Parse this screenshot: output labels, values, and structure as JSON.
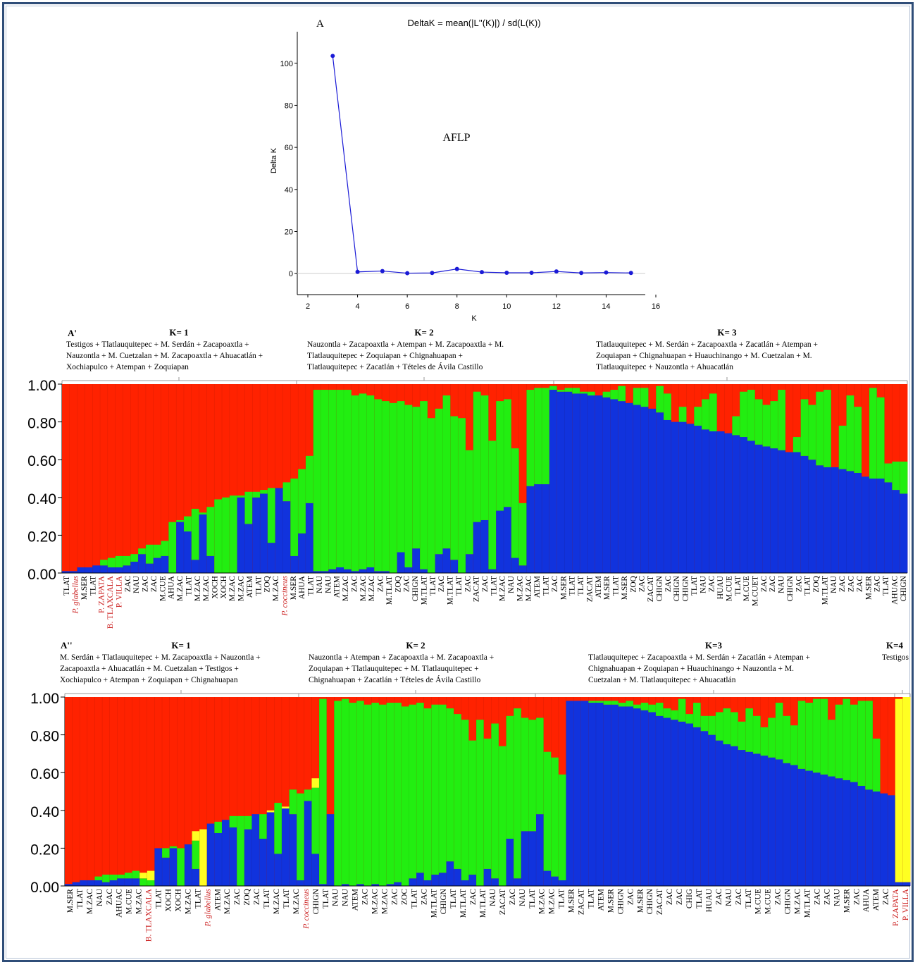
{
  "colors": {
    "red": "#ff2200",
    "green": "#22ee11",
    "blue": "#1133dd",
    "yellow": "#ffff22",
    "frame": "#2f4d78",
    "line": "#1a1ad6",
    "label_red": "#cc2222"
  },
  "chart_data": [
    {
      "type": "line",
      "panel_label": "A",
      "title": "DeltaK = mean(|L''(K)|) / sd(L(K))",
      "annotation": "AFLP",
      "xlabel": "K",
      "ylabel": "Delta K",
      "xlim": [
        2,
        16
      ],
      "ylim": [
        -10,
        115
      ],
      "xticks": [
        2,
        4,
        6,
        8,
        10,
        12,
        14,
        16
      ],
      "yticks": [
        0,
        20,
        40,
        60,
        80,
        100
      ],
      "x": [
        3,
        4,
        5,
        6,
        7,
        8,
        9,
        10,
        11,
        12,
        13,
        14,
        15
      ],
      "y": [
        103.5,
        0.8,
        1.2,
        0.2,
        0.3,
        2.2,
        0.7,
        0.4,
        0.4,
        1.0,
        0.3,
        0.5,
        0.3
      ]
    },
    {
      "type": "bar",
      "stacked": true,
      "panel_label": "A'",
      "ylim": [
        0,
        1
      ],
      "yticks": [
        "0.00",
        "0.20",
        "0.40",
        "0.60",
        "0.80",
        "1.00"
      ],
      "groups": [
        {
          "label": "K= 1",
          "text": [
            "Testigos + Tlatlauquitepec + M. Serdán + Zacapoaxtla +",
            "Nauzontla + M. Cuetzalan + M. Zacapoaxtla + Ahuacatlán +",
            "Xochiapulco + Atempan + Zoquiapan"
          ]
        },
        {
          "label": "K= 2",
          "text": [
            "Nauzontla + Zacapoaxtla + Atempan + M. Zacapoaxtla + M.",
            "Tlatlauquitepec + Zoquiapan + Chignahuapan +",
            "Tlatlauquitepec + Zacatlán + Tételes de Ávila Castillo"
          ]
        },
        {
          "label": "K= 3",
          "text": [
            "Tlatlauquitepec + M. Serdán + Zacapoaxtla + Zacatlán + Atempan +",
            "Zoquiapan + Chignahuapan + Huauchinango + M. Cuetzalan + M.",
            "Tlatlauquitepec + Nauzontla + Ahuacatlán"
          ]
        }
      ],
      "series": [
        {
          "name": "blue",
          "values": [
            0.01,
            0.01,
            0.03,
            0.03,
            0.04,
            0.04,
            0.03,
            0.03,
            0.04,
            0.06,
            0.1,
            0.05,
            0.08,
            0.09,
            0.0,
            0.27,
            0.22,
            0.07,
            0.31,
            0.09,
            0.0,
            0.0,
            0.0,
            0.4,
            0.26,
            0.4,
            0.42,
            0.16,
            0.45,
            0.38,
            0.09,
            0.21,
            0.37,
            0.01,
            0.01,
            0.02,
            0.03,
            0.02,
            0.01,
            0.02,
            0.03,
            0.01,
            0.01,
            0.0,
            0.11,
            0.03,
            0.13,
            0.02,
            0.0,
            0.1,
            0.13,
            0.07,
            0.0,
            0.1,
            0.27,
            0.28,
            0.02,
            0.33,
            0.35,
            0.08,
            0.04,
            0.46,
            0.47,
            0.47,
            0.97,
            0.96,
            0.96,
            0.95,
            0.95,
            0.94,
            0.94,
            0.93,
            0.92,
            0.91,
            0.9,
            0.89,
            0.88,
            0.87,
            0.85,
            0.81,
            0.8,
            0.8,
            0.79,
            0.78,
            0.76,
            0.75,
            0.75,
            0.74,
            0.73,
            0.72,
            0.7,
            0.68,
            0.67,
            0.66,
            0.65,
            0.64,
            0.64,
            0.62,
            0.6,
            0.57,
            0.56,
            0.56,
            0.55,
            0.54,
            0.53,
            0.51,
            0.5,
            0.5,
            0.48,
            0.44,
            0.42
          ]
        },
        {
          "name": "green",
          "values": [
            0.0,
            0.0,
            0.0,
            0.0,
            0.0,
            0.03,
            0.05,
            0.06,
            0.05,
            0.04,
            0.03,
            0.1,
            0.07,
            0.08,
            0.27,
            0.01,
            0.08,
            0.27,
            0.01,
            0.26,
            0.39,
            0.4,
            0.41,
            0.01,
            0.17,
            0.03,
            0.02,
            0.29,
            0.0,
            0.1,
            0.41,
            0.34,
            0.25,
            0.96,
            0.96,
            0.95,
            0.94,
            0.95,
            0.93,
            0.93,
            0.91,
            0.91,
            0.9,
            0.9,
            0.8,
            0.86,
            0.75,
            0.89,
            0.82,
            0.77,
            0.81,
            0.76,
            0.82,
            0.55,
            0.69,
            0.66,
            0.68,
            0.58,
            0.57,
            0.58,
            0.33,
            0.51,
            0.51,
            0.51,
            0.02,
            0.01,
            0.02,
            0.03,
            0.01,
            0.02,
            0.0,
            0.03,
            0.05,
            0.08,
            0.0,
            0.09,
            0.1,
            0.0,
            0.14,
            0.14,
            0.0,
            0.08,
            0.0,
            0.1,
            0.16,
            0.2,
            0.0,
            0.0,
            0.1,
            0.24,
            0.27,
            0.24,
            0.22,
            0.25,
            0.32,
            0.0,
            0.08,
            0.3,
            0.29,
            0.39,
            0.41,
            0.0,
            0.23,
            0.4,
            0.35,
            0.0,
            0.48,
            0.43,
            0.1,
            0.15,
            0.17
          ]
        }
      ]
    },
    {
      "type": "bar",
      "stacked": true,
      "panel_label": "A''",
      "ylim": [
        0,
        1
      ],
      "yticks": [
        "0.00",
        "0.20",
        "0.40",
        "0.60",
        "0.80",
        "1.00"
      ],
      "groups": [
        {
          "label": "K= 1",
          "text": [
            "M. Serdán + Tlatlauquitepec + M. Zacapoaxtla + Nauzontla +",
            "Zacapoaxtla + Ahuacatlán + M. Cuetzalan + Testigos +",
            "Xochiapulco + Atempan + Zoquiapan + Chignahuapan"
          ]
        },
        {
          "label": "K= 2",
          "text": [
            "Nauzontla + Atempan + Zacapoaxtla + M. Zacapoaxtla +",
            "Zoquiapan + Tlatlauquitepec + M. Tlatlauquitepec +",
            "Chignahuapan + Zacatlán + Tételes de Ávila Castillo"
          ]
        },
        {
          "label": "K=3",
          "text": [
            "Tlatlauquitepec + Zacapoaxtla + M. Serdán + Zacatlán + Atempan +",
            "Chignahuapan + Zoquiapan + Huauchinango + Nauzontla + M.",
            "Cuetzalan + M. Tlatlauquitepec + Ahuacatlán"
          ]
        },
        {
          "label": "K=4",
          "text": [
            "Testigos"
          ]
        }
      ],
      "series": [
        {
          "name": "blue",
          "values": [
            0.01,
            0.02,
            0.03,
            0.03,
            0.03,
            0.02,
            0.03,
            0.04,
            0.04,
            0.04,
            0.0,
            0.0,
            0.2,
            0.15,
            0.2,
            0.0,
            0.22,
            0.09,
            0.0,
            0.33,
            0.28,
            0.35,
            0.31,
            0.0,
            0.3,
            0.38,
            0.25,
            0.39,
            0.17,
            0.41,
            0.38,
            0.03,
            0.45,
            0.17,
            0.01,
            0.38,
            0.0,
            0.01,
            0.0,
            0.01,
            0.0,
            0.01,
            0.0,
            0.01,
            0.02,
            0.0,
            0.04,
            0.07,
            0.03,
            0.06,
            0.07,
            0.13,
            0.09,
            0.03,
            0.06,
            0.0,
            0.09,
            0.04,
            0.0,
            0.25,
            0.04,
            0.29,
            0.29,
            0.38,
            0.08,
            0.05,
            0.03,
            0.98,
            0.98,
            0.98,
            0.97,
            0.97,
            0.96,
            0.96,
            0.95,
            0.95,
            0.94,
            0.93,
            0.92,
            0.9,
            0.89,
            0.88,
            0.87,
            0.86,
            0.84,
            0.82,
            0.8,
            0.77,
            0.75,
            0.74,
            0.72,
            0.71,
            0.7,
            0.69,
            0.68,
            0.67,
            0.65,
            0.64,
            0.62,
            0.61,
            0.6,
            0.59,
            0.58,
            0.57,
            0.56,
            0.55,
            0.53,
            0.51,
            0.5,
            0.49,
            0.48,
            0.02,
            0.02
          ]
        },
        {
          "name": "green",
          "values": [
            0.0,
            0.0,
            0.0,
            0.0,
            0.02,
            0.04,
            0.03,
            0.02,
            0.03,
            0.04,
            0.04,
            0.03,
            0.0,
            0.05,
            0.01,
            0.2,
            0.0,
            0.15,
            0.0,
            0.0,
            0.06,
            0.0,
            0.06,
            0.37,
            0.07,
            0.0,
            0.13,
            0.0,
            0.27,
            0.0,
            0.13,
            0.46,
            0.06,
            0.35,
            0.98,
            0.0,
            0.98,
            0.98,
            0.97,
            0.97,
            0.96,
            0.96,
            0.96,
            0.96,
            0.95,
            0.95,
            0.92,
            0.9,
            0.91,
            0.9,
            0.89,
            0.81,
            0.82,
            0.85,
            0.71,
            0.88,
            0.69,
            0.82,
            0.74,
            0.65,
            0.9,
            0.6,
            0.59,
            0.51,
            0.63,
            0.63,
            0.56,
            0.0,
            0.0,
            0.0,
            0.01,
            0.01,
            0.02,
            0.02,
            0.02,
            0.03,
            0.02,
            0.04,
            0.04,
            0.07,
            0.05,
            0.05,
            0.12,
            0.05,
            0.13,
            0.08,
            0.1,
            0.15,
            0.19,
            0.18,
            0.15,
            0.23,
            0.2,
            0.15,
            0.21,
            0.3,
            0.25,
            0.21,
            0.36,
            0.36,
            0.39,
            0.4,
            0.3,
            0.39,
            0.43,
            0.41,
            0.45,
            0.47,
            0.28,
            0.0,
            0.0,
            0.0
          ]
        },
        {
          "name": "yellow",
          "values": [
            0,
            0,
            0,
            0,
            0,
            0,
            0,
            0,
            0,
            0,
            0.03,
            0.05,
            0,
            0,
            0,
            0,
            0,
            0.05,
            0.3,
            0,
            0,
            0,
            0,
            0,
            0,
            0,
            0,
            0.01,
            0,
            0.01,
            0,
            0,
            0,
            0.05,
            0,
            0,
            0,
            0,
            0,
            0,
            0,
            0,
            0,
            0,
            0,
            0,
            0,
            0,
            0,
            0,
            0,
            0,
            0,
            0,
            0,
            0,
            0,
            0,
            0,
            0,
            0,
            0,
            0,
            0,
            0,
            0,
            0,
            0,
            0,
            0,
            0,
            0,
            0,
            0,
            0,
            0,
            0,
            0,
            0,
            0,
            0,
            0,
            0,
            0,
            0,
            0,
            0,
            0,
            0,
            0,
            0,
            0,
            0,
            0,
            0,
            0,
            0,
            0,
            0,
            0,
            0,
            0,
            0,
            0,
            0,
            0,
            0,
            0,
            0,
            0,
            0,
            0.97,
            0.98
          ]
        }
      ]
    }
  ],
  "xlabels_A1": [
    {
      "t": "TLAT"
    },
    {
      "t": "P. glabellus",
      "red": true
    },
    {
      "t": "M.SER"
    },
    {
      "t": "TLAT"
    },
    {
      "t": "P. ZAPATA",
      "red": true
    },
    {
      "t": "B. TLAXCALA",
      "red": true
    },
    {
      "t": "P. VILLA",
      "red": true
    },
    {
      "t": "ZAC"
    },
    {
      "t": "NAU"
    },
    {
      "t": "ZAC"
    },
    {
      "t": "ZAC"
    },
    {
      "t": "M.CUE"
    },
    {
      "t": "AHUA"
    },
    {
      "t": "M.ZAC"
    },
    {
      "t": "TLAT"
    },
    {
      "t": "M.ZAC"
    },
    {
      "t": "M.ZAC"
    },
    {
      "t": "XOCH"
    },
    {
      "t": "XOCH"
    },
    {
      "t": "M.ZAC"
    },
    {
      "t": "M.ZAC"
    },
    {
      "t": "ATEM"
    },
    {
      "t": "TLAT"
    },
    {
      "t": "ZOQ"
    },
    {
      "t": "M.ZAC"
    },
    {
      "t": "P. coccineus",
      "red": true
    },
    {
      "t": "M.SER"
    },
    {
      "t": "AHUA"
    },
    {
      "t": "TLAT"
    },
    {
      "t": "NAU"
    },
    {
      "t": "NAU"
    },
    {
      "t": "ATEM"
    },
    {
      "t": "M.ZAC"
    },
    {
      "t": "ZAC"
    },
    {
      "t": "M.ZAC"
    },
    {
      "t": "M.ZAC"
    },
    {
      "t": "ZAC"
    },
    {
      "t": "M.TLAT"
    },
    {
      "t": "ZOQ"
    },
    {
      "t": "ZAC"
    },
    {
      "t": "CHIGN"
    },
    {
      "t": "M.TLAT"
    },
    {
      "t": "TLAT"
    },
    {
      "t": "ZAC"
    },
    {
      "t": "M.TLAT"
    },
    {
      "t": "TLAT"
    },
    {
      "t": "ZAC"
    },
    {
      "t": "ZACAT"
    },
    {
      "t": "ZAC"
    },
    {
      "t": "TLAT"
    },
    {
      "t": "M.ZAC"
    },
    {
      "t": "NAU"
    },
    {
      "t": "M.ZAC"
    },
    {
      "t": "M.ZAC"
    },
    {
      "t": "ATEM"
    },
    {
      "t": "TLAT"
    },
    {
      "t": "ZAC"
    },
    {
      "t": "M.SER"
    },
    {
      "t": "TLAT"
    },
    {
      "t": "TLAT"
    },
    {
      "t": "ZACAT"
    },
    {
      "t": "ATEM"
    },
    {
      "t": "M.SER"
    },
    {
      "t": "TLAT"
    },
    {
      "t": "M.SER"
    },
    {
      "t": "ZOQ"
    },
    {
      "t": "ZAC"
    },
    {
      "t": "ZACAT"
    },
    {
      "t": "CHIGN"
    },
    {
      "t": "ZAC"
    },
    {
      "t": "CHIGN"
    },
    {
      "t": "CHIGN"
    },
    {
      "t": "TLAT"
    },
    {
      "t": "NAU"
    },
    {
      "t": "ZAC"
    },
    {
      "t": "HUAU"
    },
    {
      "t": "M.CUE"
    },
    {
      "t": "TLAT"
    },
    {
      "t": "M.CUE"
    },
    {
      "t": "M.CUET"
    },
    {
      "t": "ZAC"
    },
    {
      "t": "ZAC"
    },
    {
      "t": "NAU"
    },
    {
      "t": "CHIGN"
    },
    {
      "t": "ZAC"
    },
    {
      "t": "TLAT"
    },
    {
      "t": "ZOQ"
    },
    {
      "t": "M.TLAT"
    },
    {
      "t": "NAU"
    },
    {
      "t": "ZAC"
    },
    {
      "t": "ZAC"
    },
    {
      "t": "ZAC"
    },
    {
      "t": "M.SER"
    },
    {
      "t": "ZAC"
    },
    {
      "t": "TLAT"
    },
    {
      "t": "AHUAC"
    },
    {
      "t": "CHIGN"
    }
  ],
  "xlabels_A2": [
    {
      "t": "M.SER"
    },
    {
      "t": "TLAT"
    },
    {
      "t": "M.ZAC"
    },
    {
      "t": "NAU"
    },
    {
      "t": "ZAC"
    },
    {
      "t": "AHUAC"
    },
    {
      "t": "M.CUE"
    },
    {
      "t": "M.ZAC"
    },
    {
      "t": "B. TLAXCALA",
      "red": true
    },
    {
      "t": "TLAT"
    },
    {
      "t": "XOCH"
    },
    {
      "t": "XOCH"
    },
    {
      "t": "M.ZAC"
    },
    {
      "t": "TLAT"
    },
    {
      "t": "P. glabellus",
      "red": true
    },
    {
      "t": "ATEM"
    },
    {
      "t": "M.ZAC"
    },
    {
      "t": "ZAC"
    },
    {
      "t": "ZOQ"
    },
    {
      "t": "ZAC"
    },
    {
      "t": "TLAT"
    },
    {
      "t": "M.ZAC"
    },
    {
      "t": "TLAT"
    },
    {
      "t": "M.ZAC"
    },
    {
      "t": "P. coccineus",
      "red": true
    },
    {
      "t": "CHIGN"
    },
    {
      "t": "TLAT"
    },
    {
      "t": "NAU"
    },
    {
      "t": "NAU"
    },
    {
      "t": "ATEM"
    },
    {
      "t": "ZAC"
    },
    {
      "t": "M.ZAC"
    },
    {
      "t": "M.ZAC"
    },
    {
      "t": "ZAC"
    },
    {
      "t": "ZOC"
    },
    {
      "t": "TLAT"
    },
    {
      "t": "ZAC"
    },
    {
      "t": "M.TLAT"
    },
    {
      "t": "CHIGN"
    },
    {
      "t": "TLAT"
    },
    {
      "t": "M.TLAT"
    },
    {
      "t": "ZAC"
    },
    {
      "t": "M.TLAT"
    },
    {
      "t": "NAU"
    },
    {
      "t": "ZACAT"
    },
    {
      "t": "ZAC"
    },
    {
      "t": "NAU"
    },
    {
      "t": "TLAT"
    },
    {
      "t": "M.ZAC"
    },
    {
      "t": "M.ZAC"
    },
    {
      "t": "TLAT"
    },
    {
      "t": "M.SER"
    },
    {
      "t": "ZACAT"
    },
    {
      "t": "TLAT"
    },
    {
      "t": "ATEM"
    },
    {
      "t": "M.SER"
    },
    {
      "t": "CHIGN"
    },
    {
      "t": "ZAC"
    },
    {
      "t": "M.SER"
    },
    {
      "t": "CHIGN"
    },
    {
      "t": "ZACAT"
    },
    {
      "t": "ZAC"
    },
    {
      "t": "ZAC"
    },
    {
      "t": "CHIG"
    },
    {
      "t": "TLAT"
    },
    {
      "t": "HUAU"
    },
    {
      "t": "ZAC"
    },
    {
      "t": "NAU"
    },
    {
      "t": "ZAC"
    },
    {
      "t": "TLAT"
    },
    {
      "t": "M.CUE"
    },
    {
      "t": "M.CUE"
    },
    {
      "t": "ZAC"
    },
    {
      "t": "CHIGN"
    },
    {
      "t": "M.ZAC"
    },
    {
      "t": "M.TLAT"
    },
    {
      "t": "ZAC"
    },
    {
      "t": "ZAC"
    },
    {
      "t": "NAU"
    },
    {
      "t": "M.SER"
    },
    {
      "t": "ZAC"
    },
    {
      "t": "AHUA"
    },
    {
      "t": "ATEM"
    },
    {
      "t": "ZAC"
    },
    {
      "t": "P. ZAPATA",
      "red": true
    },
    {
      "t": "P. VILLA",
      "red": true
    }
  ]
}
